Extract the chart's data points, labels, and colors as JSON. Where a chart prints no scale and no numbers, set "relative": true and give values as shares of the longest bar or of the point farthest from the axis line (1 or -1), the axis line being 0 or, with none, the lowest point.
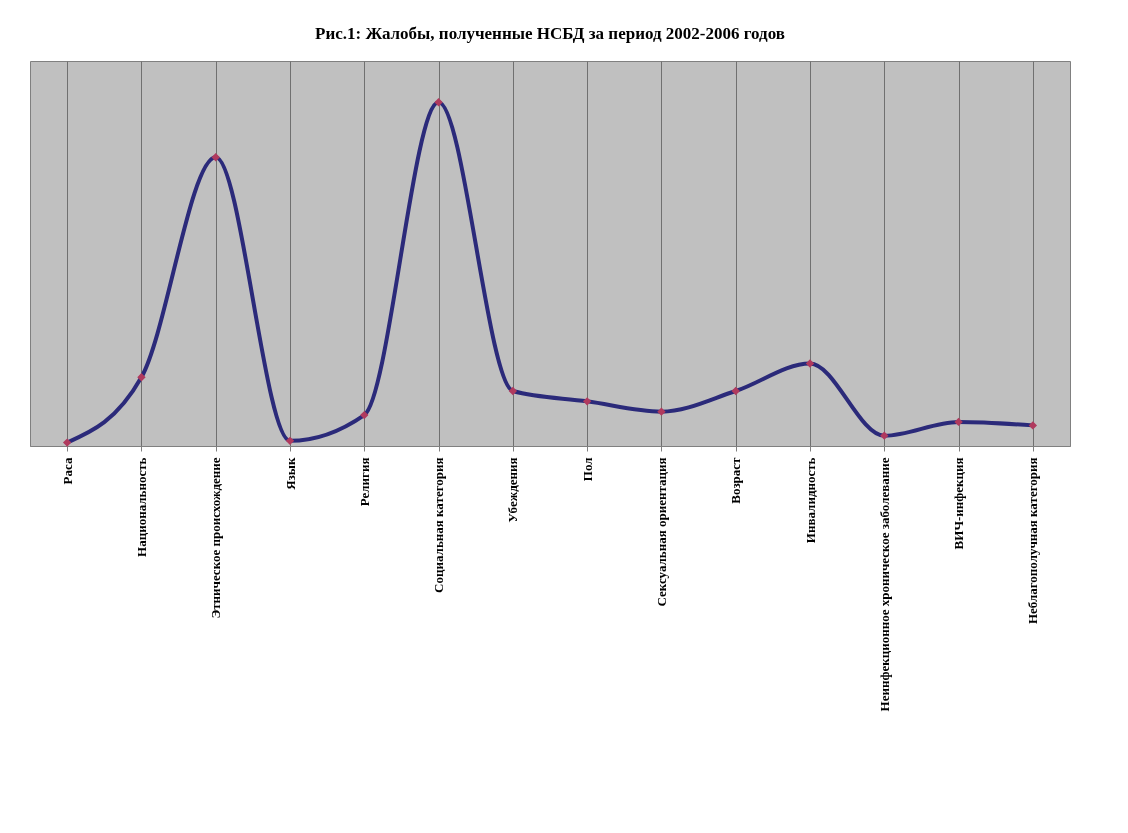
{
  "chart_data": {
    "type": "line",
    "title": "Рис.1: Жалобы, полученные НСБД за период 2002-2006 годов",
    "categories": [
      "Раса",
      "Национальность",
      "Этническое происхождение",
      "Язык",
      "Религия",
      "Социальная категория",
      "Убеждения",
      "Пол",
      "Сексуальная ориентация",
      "Возраст",
      "Инвалидность",
      "Неинфекционное хроническое заболевание",
      "ВИЧ-инфекция",
      "Неблагополучная категория"
    ],
    "relative": true,
    "series": [
      {
        "color": "#2b2a7a",
        "values": [
          0.01,
          0.2,
          0.84,
          0.015,
          0.09,
          1,
          0.16,
          0.13,
          0.1,
          0.16,
          0.24,
          0.03,
          0.07,
          0.06
        ]
      }
    ],
    "marker": "diamond",
    "line_style": "solid",
    "grid": "x",
    "tick_labels": "x"
  }
}
